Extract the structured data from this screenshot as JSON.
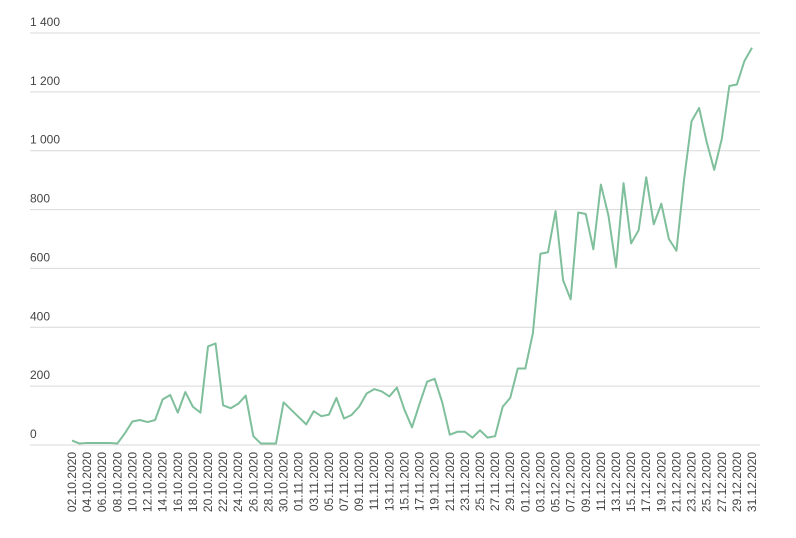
{
  "chart_data": {
    "type": "line",
    "categories": [
      "02.10.2020",
      null,
      "04.10.2020",
      null,
      "06.10.2020",
      null,
      "08.10.2020",
      null,
      "10.10.2020",
      null,
      "12.10.2020",
      null,
      "14.10.2020",
      null,
      "16.10.2020",
      null,
      "18.10.2020",
      null,
      "20.10.2020",
      null,
      "22.10.2020",
      null,
      "24.10.2020",
      null,
      "26.10.2020",
      null,
      "28.10.2020",
      null,
      "30.10.2020",
      null,
      "01.11.2020",
      null,
      "03.11.2020",
      null,
      "05.11.2020",
      null,
      "07.11.2020",
      null,
      "09.11.2020",
      null,
      "11.11.2020",
      null,
      "13.11.2020",
      null,
      "15.11.2020",
      null,
      "17.11.2020",
      null,
      "19.11.2020",
      null,
      "21.11.2020",
      null,
      "23.11.2020",
      null,
      "25.11.2020",
      null,
      "27.11.2020",
      null,
      "29.11.2020",
      null,
      "01.12.2020",
      null,
      "03.12.2020",
      null,
      "05.12.2020",
      null,
      "07.12.2020",
      null,
      "09.12.2020",
      null,
      "11.12.2020",
      null,
      "13.12.2020",
      null,
      "15.12.2020",
      null,
      "17.12.2020",
      null,
      "19.12.2020",
      null,
      "21.12.2020",
      null,
      "23.12.2020",
      null,
      "25.12.2020",
      null,
      "27.12.2020",
      null,
      "29.12.2020",
      null,
      "31.12.2020"
    ],
    "values": [
      15,
      5,
      7,
      7,
      7,
      7,
      5,
      40,
      80,
      85,
      78,
      85,
      155,
      170,
      110,
      180,
      130,
      110,
      335,
      345,
      135,
      125,
      140,
      168,
      30,
      5,
      5,
      5,
      145,
      120,
      95,
      70,
      115,
      98,
      103,
      160,
      90,
      102,
      130,
      175,
      190,
      182,
      165,
      195,
      120,
      60,
      140,
      215,
      225,
      145,
      35,
      45,
      45,
      25,
      50,
      25,
      30,
      130,
      160,
      260,
      260,
      380,
      650,
      655,
      795,
      560,
      495,
      790,
      785,
      665,
      885,
      780,
      605,
      890,
      685,
      730,
      910,
      750,
      820,
      700,
      660,
      900,
      1100,
      1145,
      1030,
      935,
      1040,
      1220,
      1225,
      1305,
      1350
    ],
    "color": "#7fbf9b",
    "ylim": [
      0,
      1400
    ],
    "yticks": [
      0,
      200,
      400,
      600,
      800,
      {
        "value": 1000,
        "label": "1 000"
      },
      {
        "value": 1200,
        "label": "1 200"
      },
      {
        "value": 1400,
        "label": "1 400"
      }
    ],
    "grid": true
  }
}
